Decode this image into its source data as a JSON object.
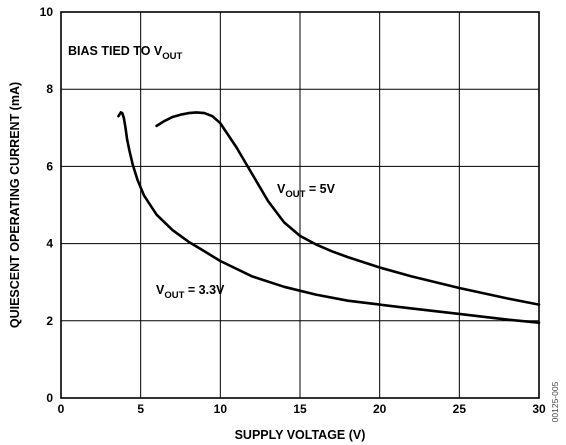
{
  "chart_data": {
    "type": "line",
    "xlabel": "SUPPLY VOLTAGE (V)",
    "ylabel": "QUIESCENT OPERATING CURRENT (mA)",
    "xlim": [
      0,
      30
    ],
    "ylim": [
      0,
      10
    ],
    "xticks": [
      0,
      5,
      10,
      15,
      20,
      25,
      30
    ],
    "yticks": [
      0,
      2,
      4,
      6,
      8,
      10
    ],
    "grid": true,
    "annotation": {
      "main": "BIAS TIED TO V",
      "sub": "OUT"
    },
    "figure_code": "00125-005",
    "series": [
      {
        "name": "V_OUT = 5V",
        "label_main": "V",
        "label_sub": "OUT",
        "label_rest": " = 5V",
        "x": [
          6.0,
          6.5,
          7.0,
          7.5,
          8.0,
          8.5,
          9.0,
          9.5,
          10.0,
          11.0,
          12.0,
          13.0,
          14.0,
          15.0,
          16.0,
          17.0,
          18.0,
          20.0,
          22.0,
          25.0,
          28.0,
          30.0
        ],
        "y": [
          7.05,
          7.18,
          7.28,
          7.34,
          7.38,
          7.4,
          7.38,
          7.3,
          7.12,
          6.5,
          5.8,
          5.1,
          4.55,
          4.2,
          3.98,
          3.8,
          3.65,
          3.38,
          3.15,
          2.85,
          2.58,
          2.42
        ]
      },
      {
        "name": "V_OUT = 3.3V",
        "label_main": "V",
        "label_sub": "OUT",
        "label_rest": " = 3.3V",
        "x": [
          3.6,
          3.75,
          3.85,
          3.95,
          4.05,
          4.15,
          4.3,
          4.5,
          4.8,
          5.2,
          6.0,
          7.0,
          8.0,
          9.0,
          10.0,
          12.0,
          14.0,
          16.0,
          18.0,
          20.0,
          22.0,
          25.0,
          28.0,
          30.0
        ],
        "y": [
          7.3,
          7.4,
          7.38,
          7.25,
          7.0,
          6.7,
          6.4,
          6.05,
          5.65,
          5.25,
          4.75,
          4.35,
          4.05,
          3.8,
          3.55,
          3.15,
          2.88,
          2.68,
          2.52,
          2.42,
          2.32,
          2.18,
          2.03,
          1.95
        ]
      }
    ]
  }
}
